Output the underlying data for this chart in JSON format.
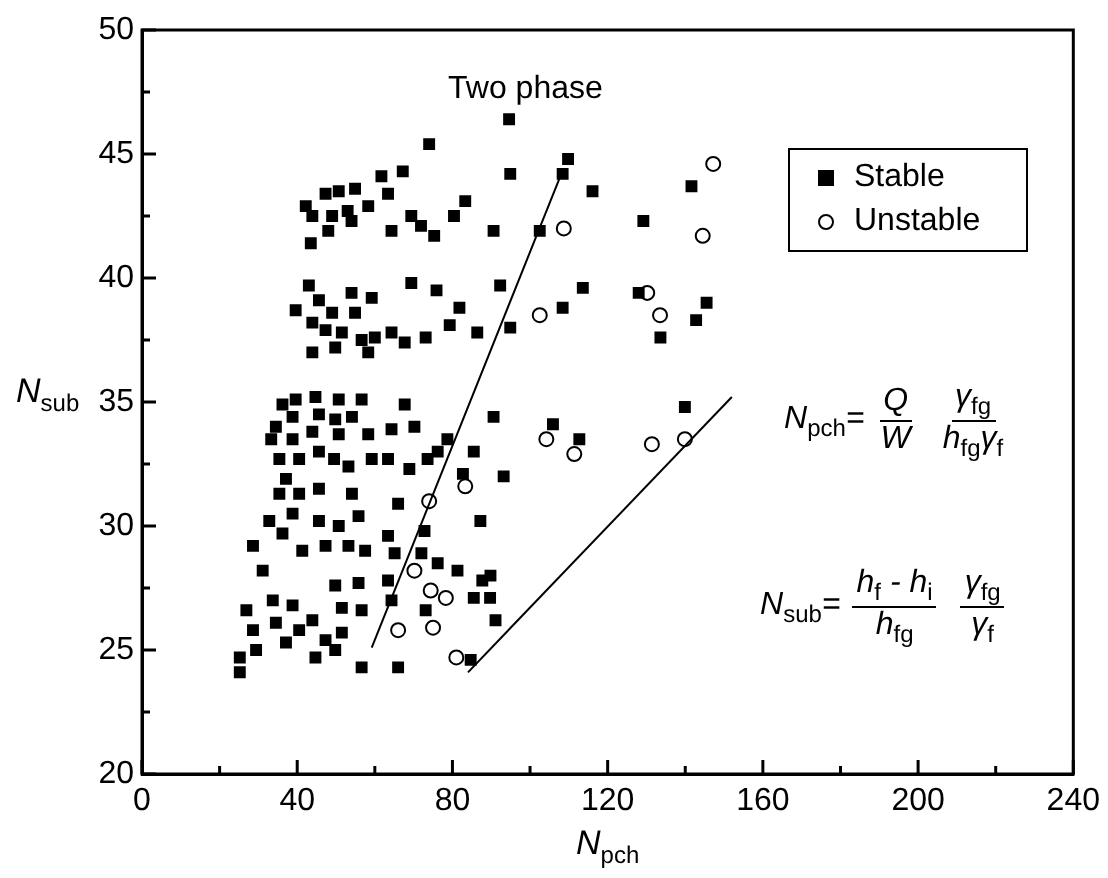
{
  "chart_data": {
    "type": "scatter",
    "xlabel": "N$_{pch}$",
    "ylabel": "N$_{sub}$",
    "xlim": [
      0,
      240
    ],
    "ylim": [
      20,
      50
    ],
    "xticks": [
      0,
      {
        "value": 20,
        "label": null
      },
      40,
      {
        "value": 60,
        "label": null
      },
      80,
      {
        "value": 100,
        "label": null
      },
      120,
      {
        "value": 140,
        "label": null
      },
      160,
      {
        "value": 180,
        "label": null
      },
      200,
      {
        "value": 220,
        "label": null
      },
      240
    ],
    "yticks": [
      20,
      {
        "value": 22.5,
        "label": null
      },
      25,
      {
        "value": 27.5,
        "label": null
      },
      30,
      {
        "value": 32.5,
        "label": null
      },
      35,
      {
        "value": 37.5,
        "label": null
      },
      40,
      {
        "value": 42.5,
        "label": null
      },
      45,
      {
        "value": 47.5,
        "label": null
      },
      50
    ],
    "legend": "top right",
    "grid": false,
    "series": [
      {
        "name": "Stable",
        "color": "#000000",
        "marker": "square",
        "x": [
          94.6,
          74,
          94.9,
          67.2,
          61.7,
          54.9,
          50.7,
          47.3,
          42.2,
          63.4,
          58.3,
          53,
          49,
          43.9,
          48,
          54,
          64.3,
          69.4,
          71.9,
          75.3,
          80.4,
          83.3,
          90.6,
          43.5,
          109.8,
          108.4,
          116.1,
          141.6,
          129.2,
          102.5,
          43,
          54,
          59.2,
          69.4,
          75.9,
          92.3,
          39.6,
          45.6,
          49,
          54.9,
          43.9,
          47.3,
          51.5,
          56.6,
          60,
          64.3,
          67.7,
          73.1,
          79.3,
          81.8,
          86.4,
          94.9,
          43.9,
          58.3,
          49.8,
          113.6,
          108.4,
          128,
          145.5,
          142.8,
          133.6,
          36.2,
          39.6,
          44.7,
          50.7,
          56.6,
          67.7,
          34.5,
          38.8,
          45.6,
          49.8,
          54.1,
          33.3,
          38.8,
          43.9,
          50.7,
          58.3,
          64.3,
          70.2,
          90.6,
          35.4,
          40.5,
          45.6,
          49.5,
          53.2,
          59.2,
          63.4,
          68.9,
          73.6,
          78.7,
          76.2,
          85.5,
          93.2,
          82.7,
          37.1,
          105.9,
          112.7,
          139.9,
          35.4,
          40.5,
          45.6,
          54.1,
          66,
          87.2,
          32.8,
          38.8,
          45.6,
          50.7,
          55.8,
          63.4,
          72.8,
          28.6,
          36.2,
          41.3,
          47.3,
          53.2,
          57.5,
          65.1,
          72,
          76.2,
          81.3,
          31.1,
          55.8,
          49.8,
          63.4,
          89.8,
          87.7,
          89.7,
          85.5,
          91.1,
          26.9,
          33.7,
          38.8,
          43.9,
          28.6,
          34.5,
          40.5,
          47.3,
          51.5,
          25.2,
          29.4,
          37.1,
          44.7,
          49.8,
          25.2,
          56.6,
          51.5,
          64.3,
          56.6,
          66,
          73.1,
          84.7
        ],
        "values": [
          46.4,
          45.4,
          44.2,
          44.3,
          44.1,
          43.6,
          43.5,
          43.4,
          42.9,
          43.4,
          42.9,
          42.7,
          42.5,
          42.5,
          41.9,
          42.3,
          41.9,
          42.5,
          42.1,
          41.7,
          42.5,
          43.1,
          41.9,
          41.4,
          44.8,
          44.2,
          43.5,
          43.7,
          42.3,
          41.9,
          39.7,
          39.4,
          39.2,
          39.8,
          39.5,
          39.7,
          38.7,
          39.1,
          38.6,
          38.6,
          38.2,
          37.9,
          37.8,
          37.5,
          37.6,
          37.8,
          37.4,
          37.6,
          38.1,
          38.8,
          37.8,
          38,
          37,
          37,
          37.2,
          39.6,
          38.8,
          39.4,
          39,
          38.3,
          37.6,
          34.9,
          35.1,
          35.2,
          35.1,
          35.1,
          34.9,
          34,
          34.4,
          34.5,
          34.3,
          34.4,
          33.5,
          33.5,
          33.8,
          33.7,
          33.7,
          33.9,
          34,
          34.4,
          32.7,
          32.7,
          33,
          32.7,
          32.4,
          32.7,
          32.7,
          32.3,
          32.7,
          33.5,
          33,
          33,
          32,
          32.1,
          31.9,
          34.1,
          33.5,
          34.8,
          31.3,
          31.3,
          31.5,
          31.3,
          30.9,
          30.2,
          30.2,
          30.5,
          30.2,
          30,
          30.4,
          29.6,
          29.8,
          29.2,
          29.7,
          29,
          29.2,
          29.2,
          29,
          28.9,
          28.9,
          28.5,
          28.2,
          28.2,
          27.7,
          27.6,
          27.8,
          28,
          27.8,
          27.1,
          27.1,
          26.2,
          26.6,
          27,
          26.8,
          26.2,
          25.8,
          26.1,
          25.8,
          25.4,
          25.7,
          24.7,
          25,
          25.3,
          24.7,
          25,
          24.1,
          26.6,
          26.7,
          27,
          24.3,
          24.3,
          26.6,
          24.6
        ]
      },
      {
        "name": "Unstable",
        "color": "#000000",
        "marker": "circle",
        "x": [
          83.3,
          74,
          70.2,
          74.4,
          78.3,
          66,
          75,
          81,
          108.7,
          102.5,
          130.2,
          133.5,
          147.2,
          144.5,
          104.2,
          111.4,
          131.4,
          139.9
        ],
        "values": [
          31.6,
          31,
          28.2,
          27.4,
          27.1,
          25.8,
          25.9,
          24.7,
          42,
          38.5,
          39.4,
          38.5,
          44.6,
          41.7,
          33.5,
          32.9,
          33.3,
          33.5
        ]
      },
      {
        "type": "line",
        "color": "#000000",
        "marker": "none",
        "x": [
          59.2,
          107.8
        ],
        "values": [
          25.1,
          44.1
        ]
      },
      {
        "type": "line",
        "color": "#000000",
        "marker": "none",
        "x": [
          84,
          152
        ],
        "values": [
          24.1,
          35.2
        ]
      }
    ],
    "annotations": [
      "Two phase",
      "N$_{pch}$=",
      "Q",
      "W",
      "γ$_{fg}$",
      "h$_{fg}$γ$_{f}$",
      "N$_{sub}$=",
      "h$_{f}$ - h$_{i}$",
      "h$_{fg}$",
      "γ$_{fg}$",
      "γ$_{f}$"
    ]
  }
}
